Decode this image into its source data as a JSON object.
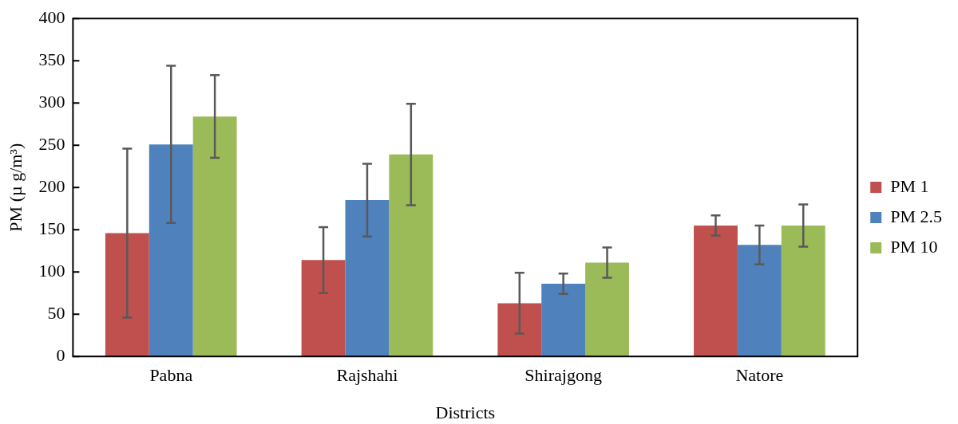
{
  "chart_data": {
    "type": "bar",
    "xlabel": "Districts",
    "ylabel": "PM (µ g/m³)",
    "categories": [
      "Pabna",
      "Rajshahi",
      "Shirajgong",
      "Natore"
    ],
    "series": [
      {
        "name": "PM 1",
        "color": "#c0504d",
        "values": [
          146,
          114,
          63,
          155
        ],
        "errors": [
          100,
          39,
          36,
          12
        ]
      },
      {
        "name": "PM 2.5",
        "color": "#4f81bd",
        "values": [
          251,
          185,
          86,
          132
        ],
        "errors": [
          93,
          43,
          12,
          23
        ]
      },
      {
        "name": "PM 10",
        "color": "#9bbb59",
        "values": [
          284,
          239,
          111,
          155
        ],
        "errors": [
          49,
          60,
          18,
          25
        ]
      }
    ],
    "ylim": [
      0,
      400
    ],
    "yticks": [
      0,
      50,
      100,
      150,
      200,
      250,
      300,
      350,
      400
    ],
    "grid": false,
    "legend": "right"
  }
}
